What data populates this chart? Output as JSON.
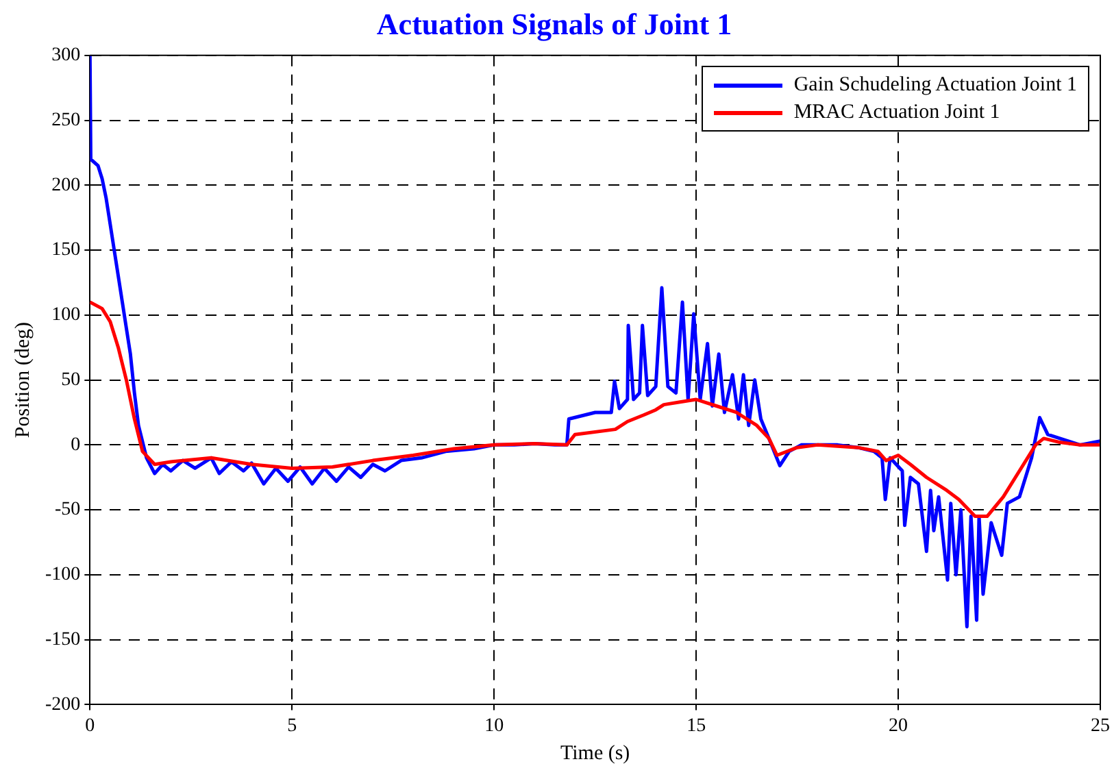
{
  "chart_data": {
    "type": "line",
    "title": "Actuation Signals of Joint 1",
    "xlabel": "Time (s)",
    "ylabel": "Position (deg)",
    "xlim": [
      0,
      25
    ],
    "xticks": [
      0,
      5,
      10,
      15,
      20,
      25
    ],
    "ylim": [
      -200,
      300
    ],
    "yticks": [
      -200,
      -150,
      -100,
      -50,
      0,
      50,
      100,
      150,
      200,
      250,
      300
    ],
    "grid": true,
    "legend": "top right",
    "marker": "none",
    "line_style": "solid",
    "series": [
      {
        "name": "Gain Schudeling Actuation Joint 1",
        "color": "#0000ff",
        "x": [
          0,
          0.02,
          0.2,
          0.3,
          0.4,
          0.5,
          0.6,
          0.7,
          0.8,
          0.9,
          1.0,
          1.1,
          1.2,
          1.4,
          1.6,
          1.8,
          2.0,
          2.3,
          2.6,
          3.0,
          3.2,
          3.5,
          3.8,
          4.0,
          4.3,
          4.6,
          4.9,
          5.2,
          5.5,
          5.8,
          6.1,
          6.4,
          6.7,
          7.0,
          7.3,
          7.7,
          8.2,
          8.8,
          9.5,
          10,
          10.5,
          11,
          11.5,
          11.8,
          11.85,
          12.5,
          12.9,
          12.98,
          13.1,
          13.3,
          13.32,
          13.45,
          13.6,
          13.67,
          13.8,
          14.0,
          14.15,
          14.3,
          14.5,
          14.66,
          14.8,
          14.94,
          15.1,
          15.28,
          15.4,
          15.56,
          15.7,
          15.9,
          16.05,
          16.17,
          16.3,
          16.45,
          16.6,
          16.8,
          17.07,
          17.3,
          17.6,
          18,
          18.5,
          19,
          19.4,
          19.6,
          19.68,
          19.8,
          19.95,
          20.1,
          20.16,
          20.3,
          20.5,
          20.7,
          20.8,
          20.88,
          21.0,
          21.22,
          21.3,
          21.43,
          21.55,
          21.7,
          21.8,
          21.94,
          22.0,
          22.1,
          22.3,
          22.56,
          22.7,
          23.0,
          23.3,
          23.5,
          23.7,
          24,
          24.5,
          25
        ],
        "values": [
          300,
          220,
          215,
          205,
          190,
          170,
          150,
          130,
          110,
          90,
          70,
          40,
          15,
          -10,
          -22,
          -15,
          -20,
          -12,
          -18,
          -10,
          -22,
          -13,
          -20,
          -14,
          -30,
          -18,
          -28,
          -17,
          -30,
          -18,
          -28,
          -17,
          -25,
          -15,
          -20,
          -12,
          -10,
          -5,
          -3,
          0,
          0,
          1,
          0,
          0,
          20,
          25,
          25,
          49,
          28,
          35,
          92,
          35,
          40,
          92,
          38,
          45,
          121,
          45,
          40,
          110,
          35,
          101,
          35,
          78,
          30,
          70,
          25,
          54,
          20,
          54,
          15,
          50,
          20,
          5,
          -16,
          -5,
          0,
          0,
          0,
          -2,
          -5,
          -10,
          -42,
          -10,
          -15,
          -20,
          -62,
          -25,
          -30,
          -82,
          -35,
          -66,
          -40,
          -104,
          -45,
          -100,
          -50,
          -140,
          -55,
          -135,
          -55,
          -115,
          -60,
          -85,
          -45,
          -40,
          -10,
          21,
          8,
          5,
          0,
          3
        ]
      },
      {
        "name": "MRAC Actuation Joint 1",
        "color": "#ff0000",
        "x": [
          0,
          0.3,
          0.5,
          0.7,
          0.9,
          1.1,
          1.3,
          1.6,
          2.0,
          3.0,
          4.0,
          5.0,
          6.0,
          7.0,
          8.0,
          9,
          10,
          11,
          11.8,
          12,
          13,
          13.3,
          13.7,
          14,
          14.2,
          14.6,
          15,
          15.5,
          16,
          16.5,
          16.8,
          17.0,
          17.5,
          18,
          19,
          19.5,
          19.7,
          20,
          20.3,
          20.7,
          21.2,
          21.5,
          21.9,
          22.2,
          22.6,
          23.0,
          23.4,
          23.6,
          24,
          24.5,
          25
        ],
        "values": [
          110,
          105,
          95,
          75,
          50,
          20,
          -5,
          -15,
          -13,
          -10,
          -15,
          -18,
          -17,
          -12,
          -8,
          -3,
          0,
          1,
          0,
          8,
          12,
          18,
          23,
          27,
          31,
          33,
          35,
          30,
          25,
          15,
          5,
          -8,
          -2,
          0,
          -2,
          -5,
          -12,
          -8,
          -15,
          -25,
          -35,
          -42,
          -55,
          -55,
          -40,
          -20,
          0,
          5,
          2,
          0,
          0
        ]
      }
    ]
  }
}
